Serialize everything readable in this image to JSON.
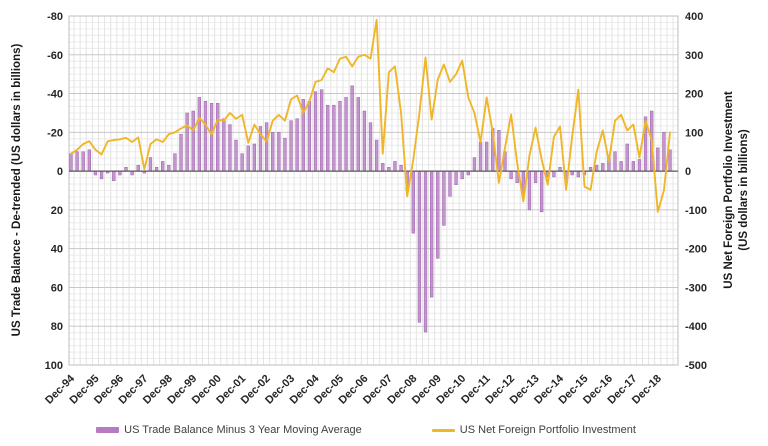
{
  "chart_data": {
    "type": "bar+line combo",
    "title": "",
    "x_tick_labels": [
      "Dec-94",
      "Dec-95",
      "Dec-96",
      "Dec-97",
      "Dec-98",
      "Dec-99",
      "Dec-00",
      "Dec-01",
      "Dec-02",
      "Dec-03",
      "Dec-04",
      "Dec-05",
      "Dec-06",
      "Dec-07",
      "Dec-08",
      "Dec-09",
      "Dec-10",
      "Dec-11",
      "Dec-12",
      "Dec-13",
      "Dec-14",
      "Dec-15",
      "Dec-16",
      "Dec-17",
      "Dec-18"
    ],
    "points_per_tick": 4,
    "n_points": 99,
    "grid": "on",
    "legend_position": "bottom",
    "left_axis": {
      "title": "US Trade Balance - De-trended (US dollars in billions)",
      "reversed": true,
      "min": -80,
      "max": 100,
      "tick_step": 20,
      "ticks": [
        "-80",
        "-60",
        "-40",
        "-20",
        "0",
        "20",
        "40",
        "60",
        "80",
        "100"
      ]
    },
    "right_axis": {
      "title_line1": "US Net Foreign Portfolio Investment",
      "title_line2": "(US dollars in billions)",
      "min": -500,
      "max": 400,
      "tick_step": 100,
      "ticks": [
        "400",
        "300",
        "200",
        "100",
        "0",
        "-100",
        "-200",
        "-300",
        "-400",
        "-500"
      ]
    },
    "series": [
      {
        "name": "US Trade Balance Minus 3 Year Moving Average",
        "type": "bar",
        "axis": "left",
        "color": "#b57cc2",
        "values": [
          -9,
          -10,
          -10,
          -11,
          2,
          4,
          1,
          5,
          2,
          -2,
          2,
          -3,
          1,
          -7,
          -2,
          -5,
          -3,
          -9,
          -19,
          -30,
          -31,
          -38,
          -36,
          -35,
          -35,
          -27,
          -24,
          -16,
          -9,
          -13,
          -14,
          -23,
          -25,
          -20,
          -20,
          -17,
          -26,
          -27,
          -37,
          -36,
          -41,
          -42,
          -34,
          -34,
          -36,
          -38,
          -44,
          -38,
          -31,
          -25,
          -16,
          -4,
          -2,
          -5,
          -3,
          10,
          32,
          78,
          83,
          65,
          45,
          28,
          13,
          7,
          4,
          2,
          -7,
          -15,
          -15,
          -22,
          -21,
          -10,
          4,
          6,
          12,
          20,
          6,
          21,
          3,
          3,
          -2,
          4,
          2,
          3,
          2,
          -2,
          -3,
          -4,
          -8,
          -10,
          -5,
          -14,
          -5,
          -6,
          -28,
          -31,
          -12,
          -20,
          -11
        ]
      },
      {
        "name": "US Net Foreign Portfolio Investment",
        "type": "line",
        "axis": "right",
        "color": "#f0b62a",
        "values": [
          45,
          55,
          70,
          77,
          55,
          43,
          77,
          80,
          82,
          86,
          75,
          87,
          5,
          70,
          82,
          75,
          95,
          100,
          110,
          118,
          105,
          138,
          120,
          94,
          133,
          130,
          150,
          135,
          145,
          73,
          120,
          95,
          76,
          130,
          145,
          130,
          185,
          195,
          150,
          180,
          230,
          235,
          265,
          255,
          290,
          295,
          270,
          295,
          300,
          290,
          390,
          45,
          255,
          270,
          150,
          -65,
          30,
          150,
          293,
          133,
          236,
          275,
          230,
          250,
          285,
          190,
          150,
          75,
          190,
          100,
          -30,
          60,
          146,
          20,
          -78,
          40,
          112,
          30,
          -35,
          89,
          115,
          -48,
          90,
          210,
          -40,
          -48,
          50,
          105,
          25,
          130,
          145,
          105,
          120,
          35,
          130,
          80,
          -105,
          -50,
          100
        ]
      }
    ],
    "colors": {
      "grid_minor": "#ececec",
      "grid_major": "#c8c8c8",
      "grid_vertical": "#e4e4e4",
      "plot_border": "#bfbfbf",
      "zero_line": "#595959",
      "tick_label": "#262626"
    }
  }
}
